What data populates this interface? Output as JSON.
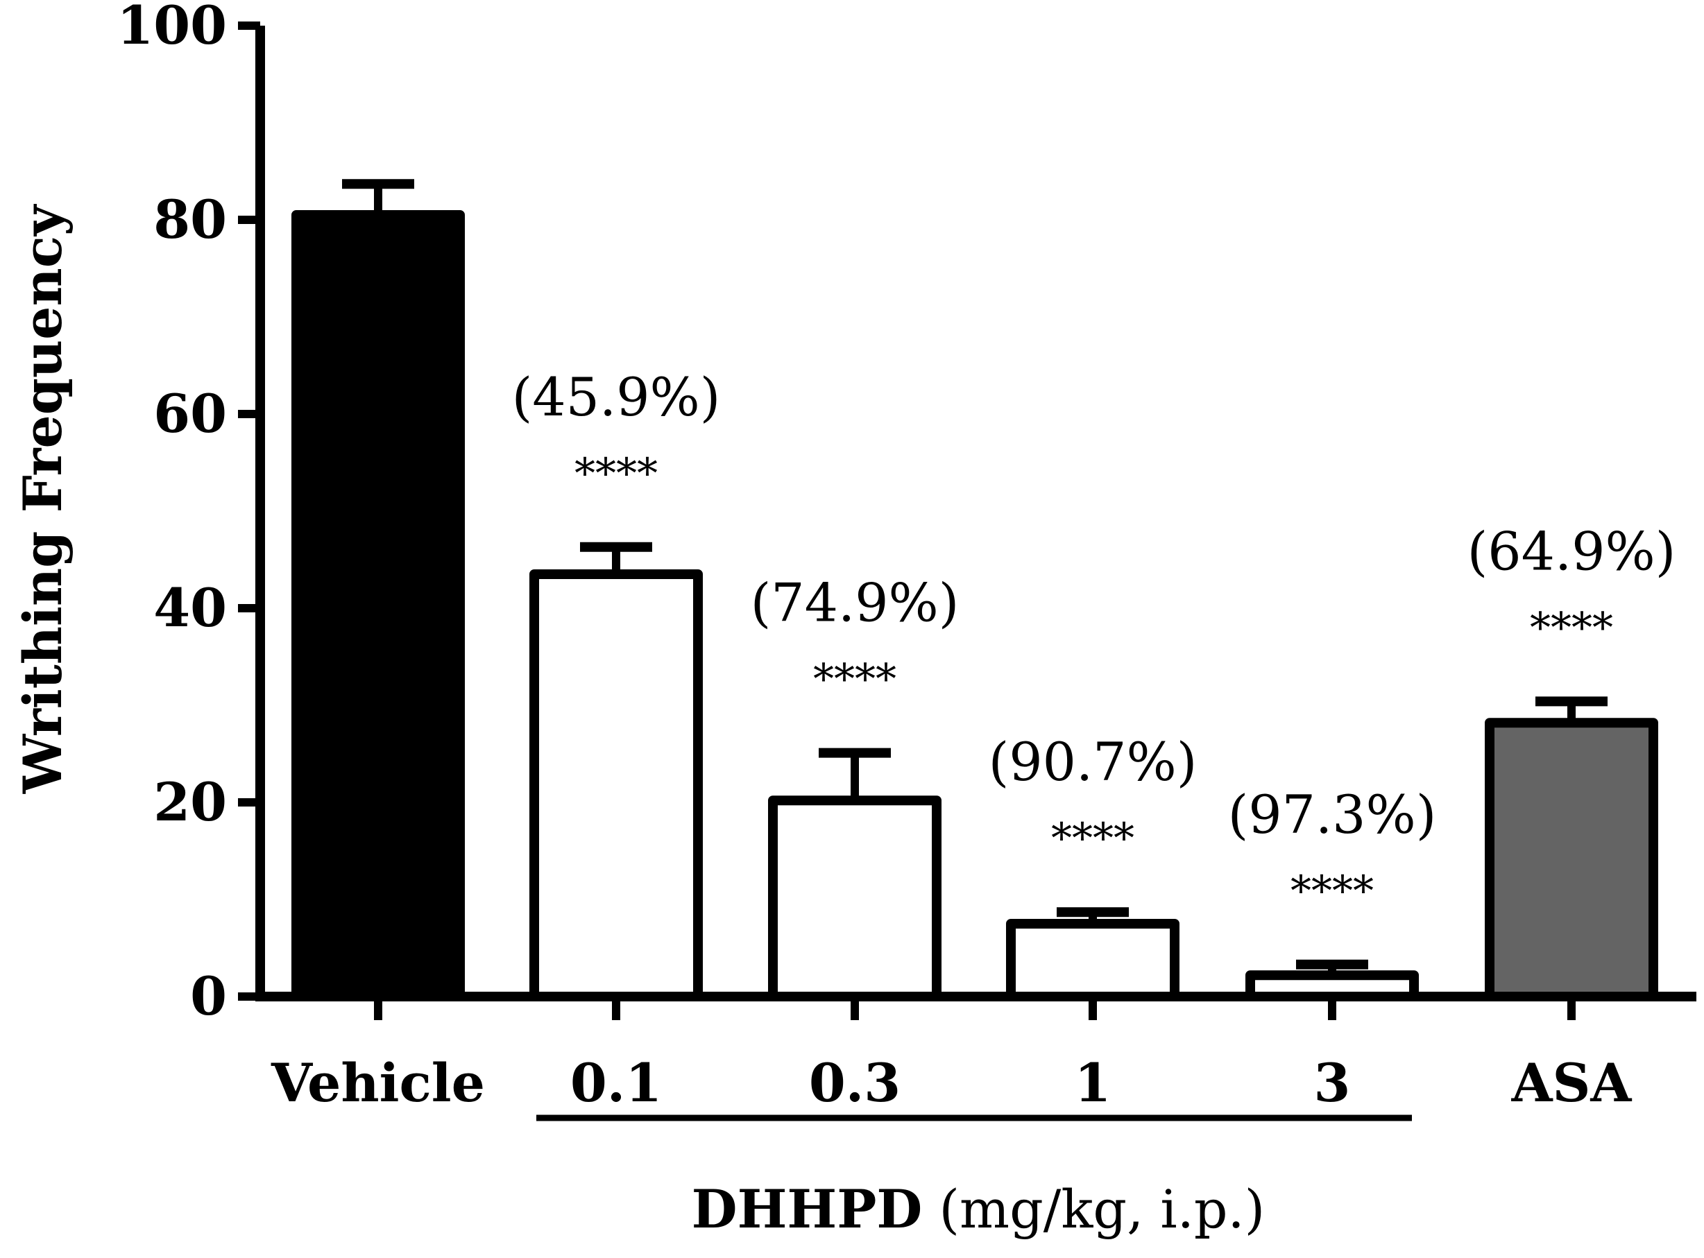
{
  "chart_data": {
    "type": "bar",
    "ylabel": "Writhing Frequency",
    "ylim": [
      0,
      100
    ],
    "yticks": [
      0,
      20,
      40,
      60,
      80,
      100
    ],
    "categories": [
      "Vehicle",
      "0.1",
      "0.3",
      "1",
      "3",
      "ASA"
    ],
    "values": [
      80.5,
      43.5,
      20.2,
      7.5,
      2.2,
      28.2
    ],
    "errors": [
      3.2,
      2.8,
      4.9,
      1.2,
      1.1,
      2.2
    ],
    "fills": [
      "#000000",
      "#ffffff",
      "#ffffff",
      "#ffffff",
      "#ffffff",
      "#646464"
    ],
    "percent_labels": [
      "",
      "(45.9%)",
      "(74.9%)",
      "(90.7%)",
      "(97.3%)",
      "(64.9%)"
    ],
    "significance": [
      "",
      "****",
      "****",
      "****",
      "****",
      "****"
    ],
    "group_label": {
      "name": "DHHPD",
      "unit": " (mg/kg, i.p.)",
      "categories": [
        "0.1",
        "0.3",
        "1",
        "3"
      ]
    }
  }
}
